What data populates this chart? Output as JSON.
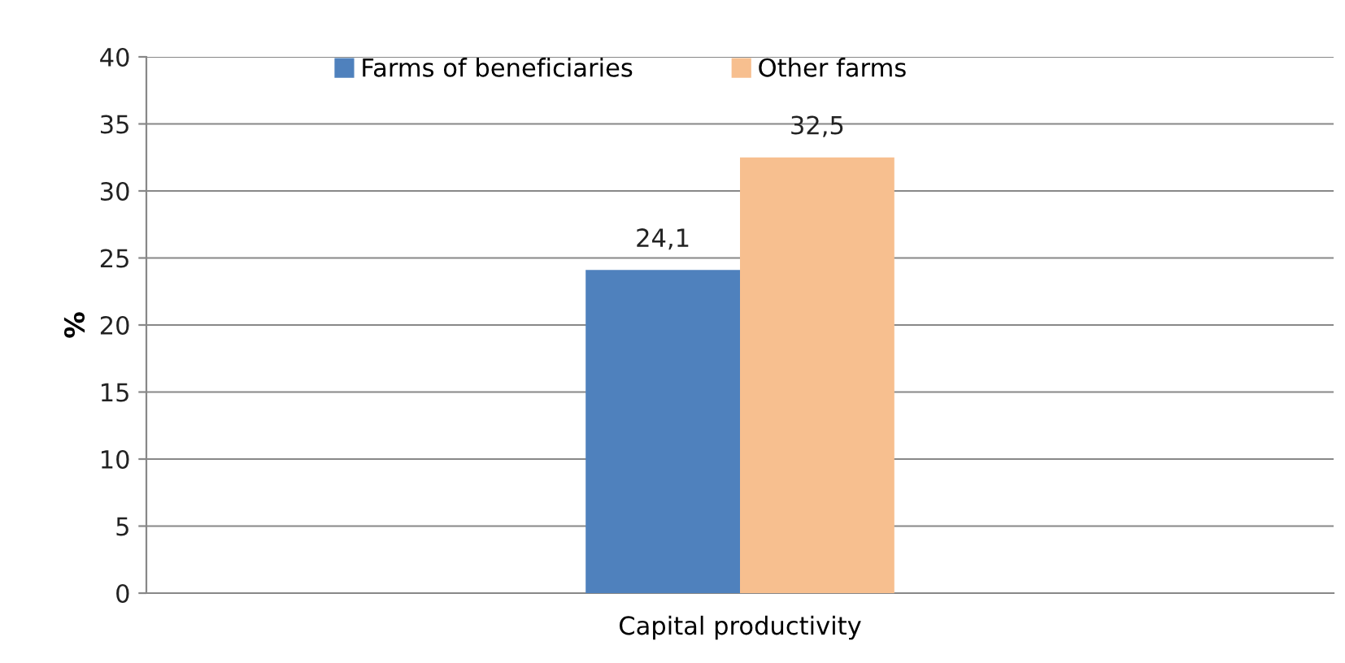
{
  "chart_data": {
    "type": "bar",
    "ylabel": "%",
    "categories": [
      "Capital productivity"
    ],
    "series": [
      {
        "name": "Farms of beneficiaries",
        "color": "#4f81bd",
        "values": [
          24.1
        ],
        "value_labels": [
          "24,1"
        ]
      },
      {
        "name": "Other farms",
        "color": "#f7bf8f",
        "values": [
          32.5
        ],
        "value_labels": [
          "32,5"
        ]
      }
    ],
    "ylim": [
      0,
      40
    ],
    "yticks": [
      0,
      5,
      10,
      15,
      20,
      25,
      30,
      35,
      40
    ],
    "grid": "y",
    "legend": "top"
  }
}
